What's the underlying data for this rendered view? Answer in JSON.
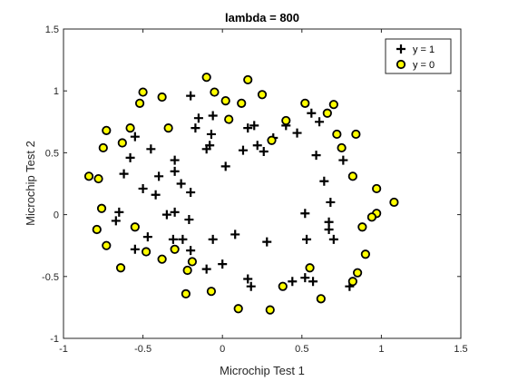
{
  "chart_data": {
    "type": "scatter",
    "title": "lambda = 800",
    "xlabel": "Microchip Test 1",
    "ylabel": "Microchip Test 2",
    "xlim": [
      -1,
      1.5
    ],
    "ylim": [
      -1,
      1.5
    ],
    "xticks": [
      "-1",
      "-0.5",
      "0",
      "0.5",
      "1",
      "1.5"
    ],
    "yticks": [
      "-1",
      "-0.5",
      "0",
      "0.5",
      "1",
      "1.5"
    ],
    "grid": false,
    "legend_position": "top-right",
    "series": [
      {
        "name": "y = 1",
        "marker": "plus",
        "color": "#000000",
        "points": [
          [
            -0.2,
            0.96
          ],
          [
            -0.58,
            0.46
          ],
          [
            -0.45,
            0.53
          ],
          [
            -0.55,
            0.63
          ],
          [
            -0.62,
            0.33
          ],
          [
            -0.42,
            0.16
          ],
          [
            -0.4,
            0.31
          ],
          [
            -0.5,
            0.21
          ],
          [
            -0.3,
            0.44
          ],
          [
            -0.17,
            0.7
          ],
          [
            -0.15,
            0.78
          ],
          [
            -0.1,
            0.53
          ],
          [
            -0.06,
            0.8
          ],
          [
            -0.08,
            0.56
          ],
          [
            -0.07,
            0.65
          ],
          [
            0.02,
            0.39
          ],
          [
            0.13,
            0.52
          ],
          [
            0.16,
            0.7
          ],
          [
            0.22,
            0.56
          ],
          [
            0.2,
            0.72
          ],
          [
            0.26,
            0.51
          ],
          [
            0.32,
            0.62
          ],
          [
            0.4,
            0.72
          ],
          [
            0.47,
            0.66
          ],
          [
            0.56,
            0.82
          ],
          [
            0.61,
            0.75
          ],
          [
            0.59,
            0.48
          ],
          [
            0.64,
            0.27
          ],
          [
            0.68,
            0.1
          ],
          [
            0.76,
            0.44
          ],
          [
            0.52,
            0.01
          ],
          [
            0.67,
            -0.06
          ],
          [
            0.67,
            -0.12
          ],
          [
            0.7,
            -0.2
          ],
          [
            0.57,
            -0.54
          ],
          [
            0.52,
            -0.51
          ],
          [
            0.53,
            -0.2
          ],
          [
            0.44,
            -0.54
          ],
          [
            0.28,
            -0.22
          ],
          [
            0.16,
            -0.52
          ],
          [
            0.18,
            -0.58
          ],
          [
            0.08,
            -0.16
          ],
          [
            0.0,
            -0.4
          ],
          [
            -0.06,
            -0.2
          ],
          [
            -0.1,
            -0.44
          ],
          [
            -0.2,
            -0.29
          ],
          [
            -0.26,
            0.25
          ],
          [
            -0.3,
            0.35
          ],
          [
            -0.35,
            0.0
          ],
          [
            -0.3,
            0.02
          ],
          [
            -0.21,
            -0.04
          ],
          [
            -0.31,
            -0.2
          ],
          [
            -0.2,
            0.18
          ],
          [
            -0.25,
            -0.2
          ],
          [
            -0.47,
            -0.18
          ],
          [
            -0.55,
            -0.28
          ],
          [
            -0.67,
            -0.05
          ],
          [
            -0.65,
            0.02
          ],
          [
            0.8,
            -0.58
          ]
        ]
      },
      {
        "name": "y = 0",
        "marker": "circle",
        "color": "#ffff00",
        "points": [
          [
            -0.84,
            0.31
          ],
          [
            -0.78,
            0.29
          ],
          [
            -0.73,
            0.68
          ],
          [
            -0.75,
            0.54
          ],
          [
            -0.63,
            0.58
          ],
          [
            -0.58,
            0.7
          ],
          [
            -0.52,
            0.9
          ],
          [
            -0.5,
            0.99
          ],
          [
            -0.38,
            0.95
          ],
          [
            -0.34,
            0.7
          ],
          [
            -0.1,
            1.11
          ],
          [
            -0.05,
            0.99
          ],
          [
            0.02,
            0.92
          ],
          [
            0.12,
            0.9
          ],
          [
            0.16,
            1.09
          ],
          [
            0.25,
            0.97
          ],
          [
            0.04,
            0.77
          ],
          [
            0.31,
            0.6
          ],
          [
            0.4,
            0.76
          ],
          [
            0.52,
            0.9
          ],
          [
            0.66,
            0.82
          ],
          [
            0.72,
            0.65
          ],
          [
            0.75,
            0.54
          ],
          [
            0.7,
            0.89
          ],
          [
            0.84,
            0.65
          ],
          [
            0.82,
            0.31
          ],
          [
            0.97,
            0.21
          ],
          [
            0.97,
            0.01
          ],
          [
            1.08,
            0.1
          ],
          [
            0.94,
            -0.02
          ],
          [
            0.88,
            -0.1
          ],
          [
            0.9,
            -0.32
          ],
          [
            0.85,
            -0.47
          ],
          [
            0.82,
            -0.54
          ],
          [
            0.55,
            -0.43
          ],
          [
            0.62,
            -0.68
          ],
          [
            0.38,
            -0.58
          ],
          [
            0.3,
            -0.77
          ],
          [
            0.1,
            -0.76
          ],
          [
            -0.07,
            -0.62
          ],
          [
            -0.23,
            -0.64
          ],
          [
            -0.22,
            -0.45
          ],
          [
            -0.19,
            -0.38
          ],
          [
            -0.3,
            -0.28
          ],
          [
            -0.38,
            -0.36
          ],
          [
            -0.48,
            -0.3
          ],
          [
            -0.55,
            -0.1
          ],
          [
            -0.64,
            -0.43
          ],
          [
            -0.73,
            -0.25
          ],
          [
            -0.76,
            0.05
          ],
          [
            -0.79,
            -0.12
          ]
        ]
      }
    ]
  }
}
